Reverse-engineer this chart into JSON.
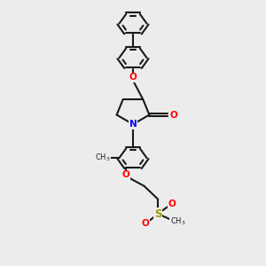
{
  "bg_color": "#ececec",
  "bond_color": "#1a1a1a",
  "N_color": "#0000ff",
  "O_color": "#ff0000",
  "S_color": "#999900",
  "lw": 1.5,
  "fig_size": [
    3.0,
    3.0
  ],
  "dpi": 100,
  "ring_r": 0.42,
  "xlim": [
    0,
    8
  ],
  "ylim": [
    0,
    10
  ]
}
